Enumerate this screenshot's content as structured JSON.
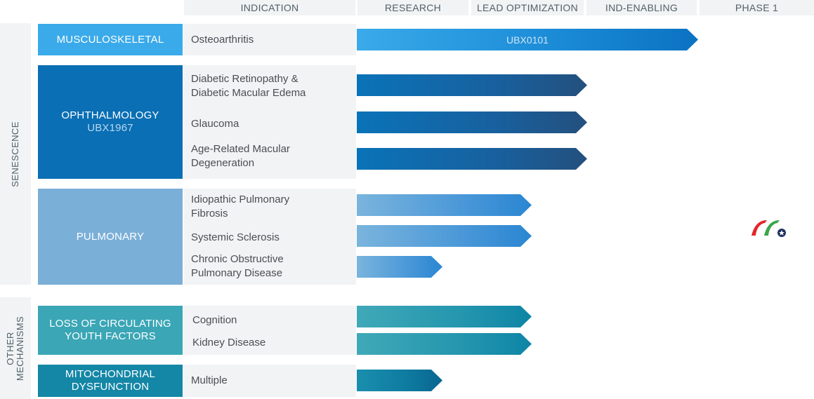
{
  "columns": [
    "INDICATION",
    "RESEARCH",
    "LEAD OPTIMIZATION",
    "IND-ENABLING",
    "PHASE 1"
  ],
  "groups": [
    "SENESCENCE",
    "OTHER",
    "MECHANISMS"
  ],
  "categories": {
    "musculoskeletal": "MUSCULOSKELETAL",
    "ophthalmology": "OPHTHALMOLOGY",
    "ophthalmology_program": "UBX1967",
    "pulmonary": "PULMONARY",
    "youth_factors_line1": "LOSS OF CIRCULATING",
    "youth_factors_line2": "YOUTH FACTORS",
    "mito_line1": "MITOCHONDRIAL",
    "mito_line2": "DYSFUNCTION"
  },
  "indications": {
    "osteoarthritis": "Osteoarthritis",
    "dr_line1": "Diabetic Retinopathy &",
    "dr_line2": "Diabetic Macular Edema",
    "glaucoma": "Glaucoma",
    "amd_line1": "Age-Related Macular",
    "amd_line2": "Degeneration",
    "ipf_line1": "Idiopathic Pulmonary",
    "ipf_line2": "Fibrosis",
    "ssc": "Systemic Sclerosis",
    "copd_line1": "Chronic Obstructive",
    "copd_line2": "Pulmonary Disease",
    "cognition": "Cognition",
    "kidney": "Kidney Disease",
    "multiple": "Multiple"
  },
  "programs": {
    "osteoarthritis_bar": "UBX0101"
  },
  "colors": {
    "musculoskeletal": "#3aaaea",
    "ophthalmology": "#0a6fb4",
    "pulmonary": "#7aafd8",
    "youth_factors": "#3aa6b6",
    "mitochondrial": "#1486a6",
    "logo_red": "#e3262b",
    "logo_green": "#3aa64a",
    "logo_navy": "#1e3160"
  },
  "logo": {
    "name": "company-logo-icon"
  }
}
